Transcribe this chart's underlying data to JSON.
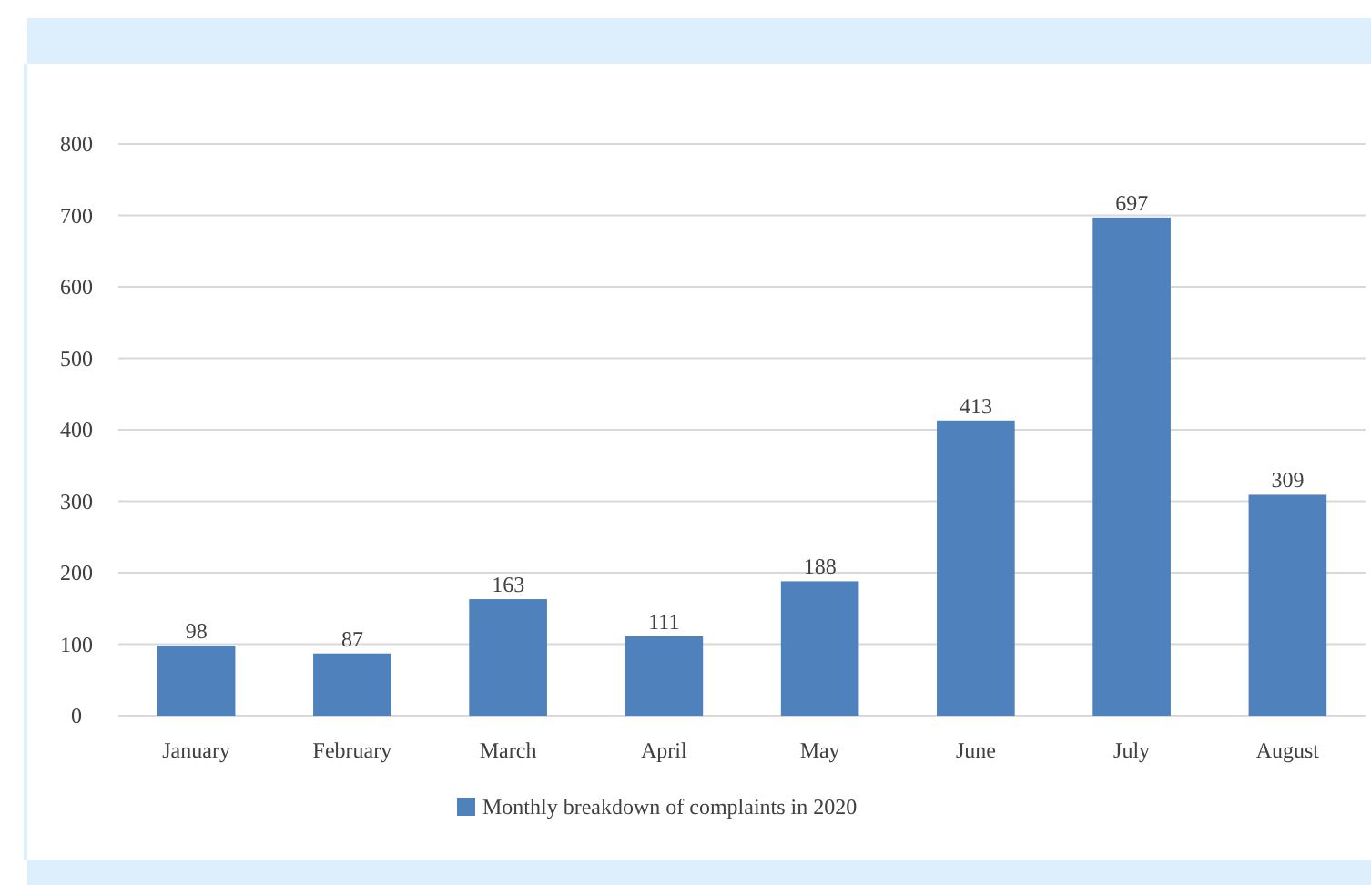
{
  "chart_data": {
    "type": "bar",
    "categories": [
      "January",
      "February",
      "March",
      "April",
      "May",
      "June",
      "July",
      "August"
    ],
    "series": [
      {
        "name": "Monthly breakdown of complaints in 2020",
        "color": "#4f81bd",
        "values": [
          98,
          87,
          163,
          111,
          188,
          413,
          697,
          309
        ]
      }
    ],
    "ylim": [
      0,
      800
    ],
    "yticks": [
      0,
      100,
      200,
      300,
      400,
      500,
      600,
      700,
      800
    ],
    "grid": "y",
    "data_labels": true,
    "legend": "bottom"
  }
}
